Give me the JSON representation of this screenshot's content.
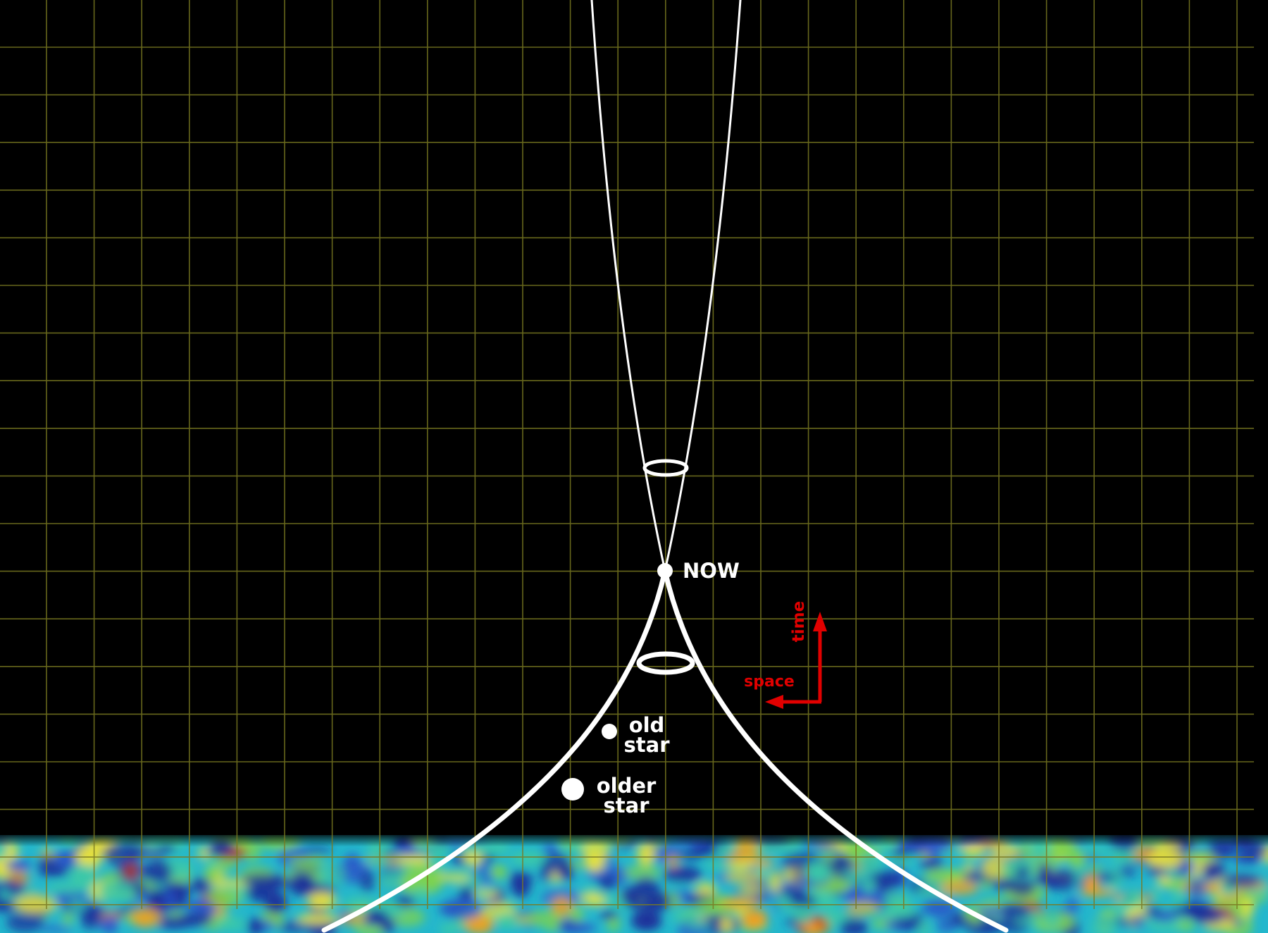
{
  "labels": {
    "now": "NOW",
    "old_star": [
      "old",
      "star"
    ],
    "older_star": [
      "older",
      "star"
    ],
    "axis_time": "time",
    "axis_space": "space"
  },
  "colors": {
    "background": "#000000",
    "grid": "#6b6b1e",
    "lines": "#ffffff",
    "axis_arrows": "#e10000"
  },
  "icons": {
    "now_marker": "dot-icon",
    "arrows": "axis-arrow-icon"
  }
}
